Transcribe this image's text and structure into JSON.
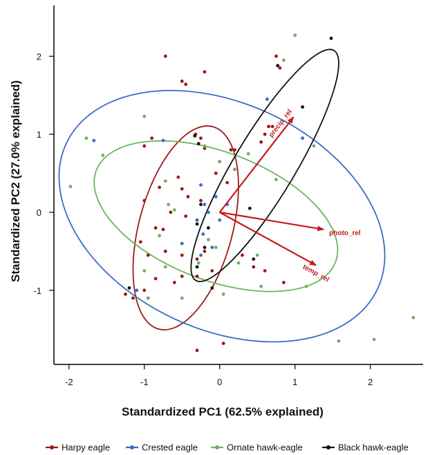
{
  "chart_data": {
    "type": "scatter",
    "xlabel": "Standardized PC1 (62.5% explained)",
    "ylabel": "Standardized PC2 (27.0% explained)",
    "xlim": [
      -2.2,
      2.7
    ],
    "ylim": [
      -1.95,
      2.65
    ],
    "xticks": [
      -2,
      -1,
      0,
      1,
      2
    ],
    "yticks": [
      -1,
      0,
      1,
      2
    ],
    "grid": false,
    "legend_position": "bottom",
    "series": [
      {
        "name": "Harpy eagle",
        "color": "#a01818",
        "points": [
          [
            -0.72,
            2.0
          ],
          [
            -0.5,
            1.68
          ],
          [
            -0.45,
            1.64
          ],
          [
            -0.2,
            1.8
          ],
          [
            -0.32,
            1.0
          ],
          [
            -0.25,
            0.95
          ],
          [
            -0.9,
            0.95
          ],
          [
            -1.0,
            0.85
          ],
          [
            -0.2,
            0.82
          ],
          [
            0.15,
            0.8
          ],
          [
            0.55,
            0.9
          ],
          [
            0.6,
            1.0
          ],
          [
            0.7,
            1.1
          ],
          [
            0.2,
            0.55
          ],
          [
            -0.55,
            0.45
          ],
          [
            -0.05,
            0.5
          ],
          [
            0.1,
            0.38
          ],
          [
            -0.5,
            0.3
          ],
          [
            -0.8,
            0.32
          ],
          [
            -1.0,
            0.15
          ],
          [
            -0.42,
            0.2
          ],
          [
            -0.25,
            0.15
          ],
          [
            -0.65,
            0.0
          ],
          [
            -0.45,
            -0.05
          ],
          [
            -0.3,
            -0.1
          ],
          [
            -0.75,
            -0.22
          ],
          [
            -0.85,
            -0.2
          ],
          [
            -1.05,
            -0.38
          ],
          [
            -0.95,
            -0.55
          ],
          [
            -0.72,
            -0.5
          ],
          [
            -0.5,
            -0.55
          ],
          [
            -0.3,
            -0.6
          ],
          [
            -0.2,
            -0.5
          ],
          [
            -0.6,
            -0.9
          ],
          [
            -0.85,
            -0.85
          ],
          [
            -1.0,
            -1.0
          ],
          [
            -1.15,
            -1.1
          ],
          [
            -1.25,
            -1.05
          ],
          [
            -0.95,
            -1.1
          ],
          [
            -0.5,
            -0.82
          ],
          [
            -0.1,
            -0.75
          ],
          [
            -0.3,
            -0.82
          ],
          [
            0.3,
            -0.55
          ],
          [
            0.45,
            -0.7
          ],
          [
            0.6,
            -0.75
          ],
          [
            0.85,
            -0.9
          ],
          [
            0.05,
            -1.68
          ],
          [
            -0.3,
            -1.77
          ],
          [
            0.75,
            2.0
          ],
          [
            0.8,
            1.85
          ],
          [
            0.65,
            1.1
          ],
          [
            0.2,
            0.8
          ]
        ]
      },
      {
        "name": "Crested eagle",
        "color": "#3a6cc0",
        "points": [
          [
            -1.67,
            0.92
          ],
          [
            -0.75,
            0.92
          ],
          [
            0.63,
            1.45
          ],
          [
            -0.25,
            0.35
          ],
          [
            -0.2,
            0.1
          ],
          [
            -0.15,
            0.0
          ],
          [
            -0.3,
            -0.1
          ],
          [
            -0.22,
            -0.28
          ],
          [
            -0.1,
            -0.45
          ],
          [
            -0.25,
            -0.55
          ],
          [
            0.0,
            -0.1
          ],
          [
            0.1,
            0.1
          ],
          [
            -0.05,
            0.2
          ],
          [
            0.0,
            0.65
          ],
          [
            -1.1,
            -1.0
          ],
          [
            1.1,
            0.95
          ],
          [
            -0.5,
            -0.4
          ]
        ]
      },
      {
        "name": "Ornate hawk-eagle",
        "color": "#6db35a",
        "points": [
          [
            -1.98,
            0.33
          ],
          [
            -1.77,
            0.95
          ],
          [
            -1.55,
            0.73
          ],
          [
            -1.0,
            1.23
          ],
          [
            -0.72,
            0.4
          ],
          [
            -0.68,
            0.1
          ],
          [
            -0.6,
            0.03
          ],
          [
            -0.8,
            -0.3
          ],
          [
            -0.72,
            -0.7
          ],
          [
            -1.0,
            -0.75
          ],
          [
            -0.5,
            -1.1
          ],
          [
            -0.28,
            -0.65
          ],
          [
            -0.15,
            -0.35
          ],
          [
            -0.05,
            -0.45
          ],
          [
            0.05,
            -1.05
          ],
          [
            -0.2,
            0.85
          ],
          [
            0.0,
            0.65
          ],
          [
            0.2,
            0.55
          ],
          [
            0.38,
            0.75
          ],
          [
            0.75,
            0.42
          ],
          [
            0.85,
            1.95
          ],
          [
            1.0,
            2.27
          ],
          [
            1.25,
            0.85
          ],
          [
            1.15,
            -0.95
          ],
          [
            0.5,
            -0.55
          ],
          [
            0.25,
            -0.65
          ],
          [
            0.55,
            -0.95
          ],
          [
            1.58,
            -1.65
          ],
          [
            2.05,
            -1.63
          ],
          [
            2.57,
            -1.35
          ],
          [
            -0.95,
            -1.1
          ]
        ]
      },
      {
        "name": "Black hawk-eagle",
        "color": "#111111",
        "points": [
          [
            1.48,
            2.23
          ],
          [
            0.77,
            1.88
          ],
          [
            1.1,
            1.35
          ],
          [
            -0.33,
            0.98
          ],
          [
            -0.28,
            0.88
          ],
          [
            -0.25,
            0.1
          ],
          [
            -0.3,
            -0.15
          ],
          [
            -0.2,
            -0.45
          ],
          [
            -0.3,
            -0.7
          ],
          [
            -0.1,
            -0.97
          ],
          [
            0.4,
            0.05
          ],
          [
            0.45,
            -0.6
          ],
          [
            -1.2,
            -0.97
          ],
          [
            -0.15,
            -0.2
          ]
        ]
      }
    ],
    "ellipses": [
      {
        "series": "Harpy eagle",
        "cx": -0.45,
        "cy": -0.2,
        "rx": 1.39,
        "ry": 0.6,
        "angle_deg": 75
      },
      {
        "series": "Crested eagle",
        "cx": 0.03,
        "cy": -0.05,
        "rx": 2.28,
        "ry": 1.45,
        "angle_deg": -25
      },
      {
        "series": "Ornate hawk-eagle",
        "cx": -0.05,
        "cy": -0.05,
        "rx": 1.7,
        "ry": 0.82,
        "angle_deg": -21
      },
      {
        "series": "Black hawk-eagle",
        "cx": 0.6,
        "cy": 0.6,
        "rx": 1.78,
        "ry": 0.39,
        "angle_deg": 59
      }
    ],
    "arrows": [
      {
        "label": "precip_rel",
        "x": 0.98,
        "y": 1.22
      },
      {
        "label": "photo_rel",
        "x": 1.38,
        "y": -0.22
      },
      {
        "label": "temp_rel",
        "x": 1.28,
        "y": -0.68
      }
    ],
    "arrow_color": "#c41a1a"
  }
}
